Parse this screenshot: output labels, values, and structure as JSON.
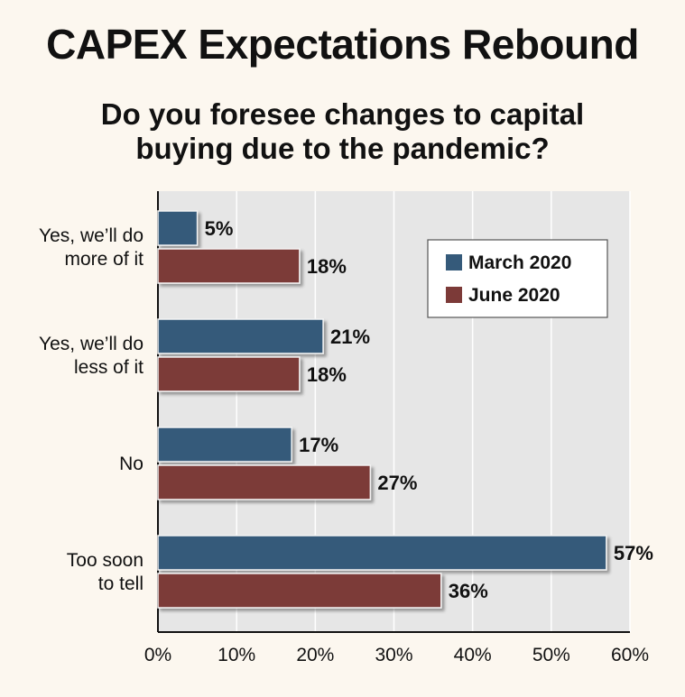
{
  "header": {
    "title": "CAPEX Expectations Rebound",
    "subtitle_line1": "Do you foresee changes to capital",
    "subtitle_line2": "buying due to the pandemic?"
  },
  "colors": {
    "background": "#fcf7ef",
    "plot_background": "#e6e6e6",
    "march": "#355a7a",
    "june": "#7c3a38"
  },
  "chart_data": {
    "type": "bar",
    "orientation": "horizontal",
    "categories": [
      [
        "Yes, we’ll do",
        "more of it"
      ],
      [
        "Yes, we’ll do",
        "less of it"
      ],
      [
        "No"
      ],
      [
        "Too soon",
        "to tell"
      ]
    ],
    "series": [
      {
        "name": "March 2020",
        "values": [
          5,
          21,
          17,
          57
        ],
        "labels": [
          "5%",
          "21%",
          "17%",
          "57%"
        ]
      },
      {
        "name": "June 2020",
        "values": [
          18,
          18,
          27,
          36
        ],
        "labels": [
          "18%",
          "18%",
          "27%",
          "36%"
        ]
      }
    ],
    "xlim": [
      0,
      60
    ],
    "xticks": [
      "0%",
      "10%",
      "20%",
      "30%",
      "40%",
      "50%",
      "60%"
    ],
    "grid": true,
    "legend_position": "top-right"
  }
}
